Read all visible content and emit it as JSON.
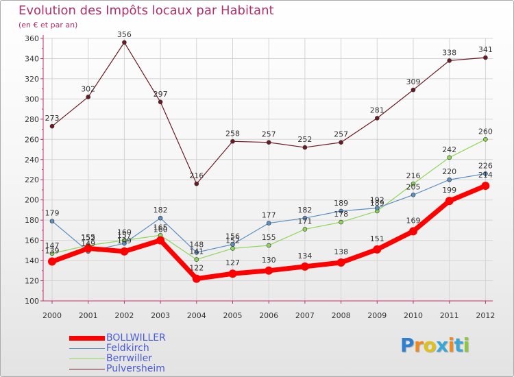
{
  "chart_data": {
    "type": "line",
    "title": "Evolution des Impôts locaux par Habitant",
    "subtitle": "(en € et par an)",
    "xlabel": "",
    "ylabel": "",
    "x": [
      "2000",
      "2001",
      "2002",
      "2003",
      "2004",
      "2005",
      "2006",
      "2007",
      "2008",
      "2009",
      "2010",
      "2011",
      "2012"
    ],
    "ylim": [
      100,
      360
    ],
    "yticks": [
      100,
      120,
      140,
      160,
      180,
      200,
      220,
      240,
      260,
      280,
      300,
      320,
      340,
      360
    ],
    "grid": true,
    "legend_position": "bottom-left",
    "series": [
      {
        "name": "Pulversheim",
        "color": "#6b1a24",
        "values": [
          273,
          302,
          356,
          297,
          216,
          258,
          257,
          252,
          257,
          281,
          309,
          338,
          341
        ]
      },
      {
        "name": "Berrwiller",
        "color": "#8fd65a",
        "values": [
          147,
          155,
          160,
          165,
          141,
          152,
          155,
          171,
          178,
          189,
          216,
          242,
          260
        ]
      },
      {
        "name": "Feldkirch",
        "color": "#5b8fc2",
        "values": [
          179,
          149,
          157,
          182,
          148,
          156,
          177,
          182,
          189,
          192,
          205,
          220,
          226
        ]
      },
      {
        "name": "BOLLWILLER",
        "color": "#ff0000",
        "values": [
          139,
          152,
          149,
          160,
          122,
          127,
          130,
          134,
          138,
          151,
          169,
          199,
          214
        ]
      }
    ]
  },
  "legend": {
    "items": [
      {
        "label": "BOLLWILLER",
        "color": "#ff0000"
      },
      {
        "label": "Feldkirch",
        "color": "#5b8fc2"
      },
      {
        "label": "Berrwiller",
        "color": "#8fd65a"
      },
      {
        "label": "Pulversheim",
        "color": "#6b1a24"
      }
    ]
  },
  "logo": {
    "letters": [
      {
        "ch": "P",
        "color": "#2f7fd0"
      },
      {
        "ch": "r",
        "color": "#ef8a1f"
      },
      {
        "ch": "o",
        "color": "#e0c11a"
      },
      {
        "ch": "x",
        "color": "#3aa6d6"
      },
      {
        "ch": "i",
        "color": "#ef8a1f"
      },
      {
        "ch": "t",
        "color": "#3aa6d6"
      },
      {
        "ch": "i",
        "color": "#8dc63f"
      }
    ]
  }
}
